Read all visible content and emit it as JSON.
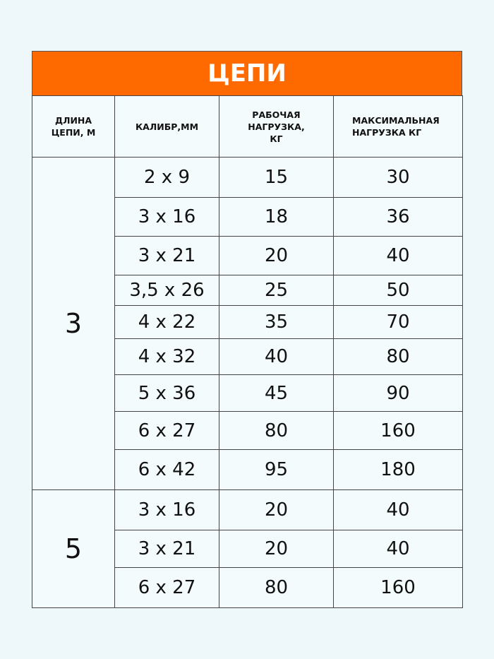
{
  "title": "ЦЕПИ",
  "accent_color": "#ff6a00",
  "headers": [
    "ДЛИНА ЦЕПИ, М",
    "КАЛИБР,ММ",
    "РАБОЧАЯ НАГРУЗКА, КГ",
    "МАКСИМАЛЬНАЯ НАГРУЗКА КГ"
  ],
  "groups": [
    {
      "length": "3",
      "rows": [
        [
          "2 x 9",
          "15",
          "30"
        ],
        [
          "3 x 16",
          "18",
          "36"
        ],
        [
          "3 x 21",
          "20",
          "40"
        ],
        [
          "3,5 x 26",
          "25",
          "50"
        ],
        [
          "4 x 22",
          "35",
          "70"
        ],
        [
          "4 x 32",
          "40",
          "80"
        ],
        [
          "5 x 36",
          "45",
          "90"
        ],
        [
          "6 x 27",
          "80",
          "160"
        ],
        [
          "6 x 42",
          "95",
          "180"
        ]
      ]
    },
    {
      "length": "5",
      "rows": [
        [
          "3 x 16",
          "20",
          "40"
        ],
        [
          "3 x 21",
          "20",
          "40"
        ],
        [
          "6 x 27",
          "80",
          "160"
        ]
      ]
    }
  ]
}
